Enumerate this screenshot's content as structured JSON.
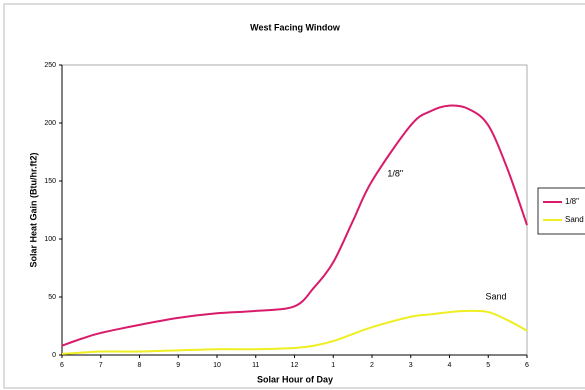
{
  "chart_data": {
    "type": "line",
    "title": "West Facing Window",
    "xlabel": "Solar Hour of Day",
    "ylabel": "Solar Heat Gain (Btu/hr.ft2)",
    "x": [
      6,
      6.5,
      7,
      8,
      9,
      10,
      11,
      12,
      12.5,
      13,
      13.5,
      14,
      15,
      15.5,
      16,
      16.5,
      17,
      17.5,
      18
    ],
    "series": [
      {
        "name": "1/8\"",
        "color": "#d81b6a",
        "values": [
          8,
          14,
          19,
          26,
          32,
          36,
          38,
          42,
          58,
          80,
          115,
          150,
          198,
          210,
          215,
          212,
          198,
          160,
          112
        ]
      },
      {
        "name": "Sand",
        "color": "#eeee22",
        "values": [
          1,
          2,
          3,
          3,
          4,
          5,
          5,
          6,
          8,
          12,
          18,
          24,
          33,
          35,
          37,
          38,
          37,
          30,
          21
        ]
      }
    ],
    "annotations": [
      {
        "text": "1/8\"",
        "x": 14.6,
        "y": 156
      },
      {
        "text": "Sand",
        "x": 17.2,
        "y": 50
      }
    ],
    "xlim": [
      6,
      18
    ],
    "xticks": [
      6,
      7,
      8,
      9,
      10,
      11,
      12,
      {
        "value": 13,
        "label": "1"
      },
      {
        "value": 14,
        "label": "2"
      },
      {
        "value": 15,
        "label": "3"
      },
      {
        "value": 16,
        "label": "4"
      },
      {
        "value": 17,
        "label": "5"
      },
      {
        "value": 18,
        "label": "6"
      }
    ],
    "ylim": [
      0,
      250
    ],
    "yticks": [
      0,
      50,
      100,
      150,
      200,
      250
    ],
    "grid": false,
    "legend": "right"
  }
}
